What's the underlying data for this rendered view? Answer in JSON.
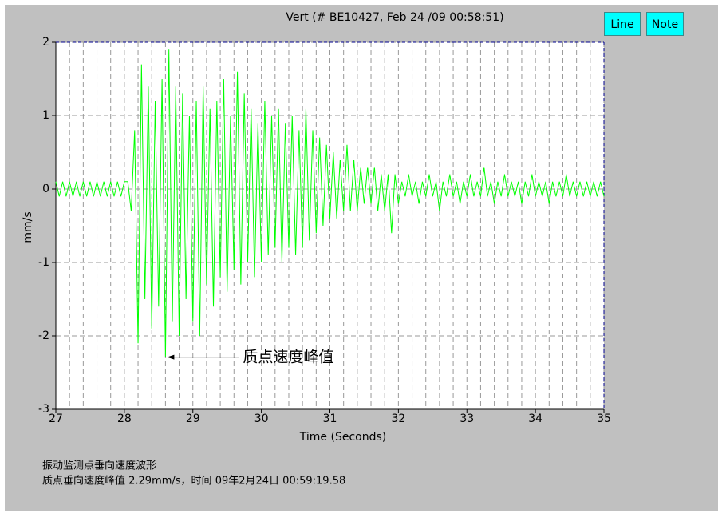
{
  "chart_data": {
    "type": "line",
    "title": "Vert  (# BE10427, Feb 24 /09 00:58:51)",
    "xlabel": "Time (Seconds)",
    "ylabel": "mm/s",
    "annotation": "质点速度峰值",
    "xlim": [
      27,
      35
    ],
    "ylim": [
      -3,
      2
    ],
    "xticks": [
      27,
      28,
      29,
      30,
      31,
      32,
      33,
      34,
      35
    ],
    "yticks": [
      2,
      1,
      0,
      -1,
      -2,
      -3
    ],
    "x_minor_grid": [
      27.2,
      27.4,
      27.6,
      27.8,
      28.2,
      28.4,
      28.6,
      28.8,
      29.2,
      29.4,
      29.6,
      29.8,
      30.2,
      30.4,
      30.6,
      30.8,
      31.2,
      31.4,
      31.6,
      31.8,
      32.2,
      32.4,
      32.6,
      32.8,
      33.2,
      33.4,
      33.6,
      33.8,
      34.2,
      34.4,
      34.6,
      34.8
    ],
    "grid": true,
    "x": [
      27,
      27.05,
      27.1,
      27.15,
      27.2,
      27.25,
      27.3,
      27.35,
      27.4,
      27.45,
      27.5,
      27.55,
      27.6,
      27.65,
      27.7,
      27.75,
      27.8,
      27.85,
      27.9,
      27.95,
      28,
      28.05,
      28.1,
      28.15,
      28.2,
      28.25,
      28.3,
      28.35,
      28.4,
      28.45,
      28.5,
      28.55,
      28.6,
      28.65,
      28.7,
      28.75,
      28.8,
      28.85,
      28.9,
      28.95,
      29,
      29.05,
      29.1,
      29.15,
      29.2,
      29.25,
      29.3,
      29.35,
      29.4,
      29.45,
      29.5,
      29.55,
      29.6,
      29.65,
      29.7,
      29.75,
      29.8,
      29.85,
      29.9,
      29.95,
      30,
      30.05,
      30.1,
      30.15,
      30.2,
      30.25,
      30.3,
      30.35,
      30.4,
      30.45,
      30.5,
      30.55,
      30.6,
      30.65,
      30.7,
      30.75,
      30.8,
      30.85,
      30.9,
      30.95,
      31,
      31.05,
      31.1,
      31.15,
      31.2,
      31.25,
      31.3,
      31.35,
      31.4,
      31.45,
      31.5,
      31.55,
      31.6,
      31.65,
      31.7,
      31.75,
      31.8,
      31.85,
      31.9,
      31.95,
      32,
      32.05,
      32.1,
      32.15,
      32.2,
      32.25,
      32.3,
      32.35,
      32.4,
      32.45,
      32.5,
      32.55,
      32.6,
      32.65,
      32.7,
      32.75,
      32.8,
      32.85,
      32.9,
      32.95,
      33,
      33.05,
      33.1,
      33.15,
      33.2,
      33.25,
      33.3,
      33.35,
      33.4,
      33.45,
      33.5,
      33.55,
      33.6,
      33.65,
      33.7,
      33.75,
      33.8,
      33.85,
      33.9,
      33.95,
      34,
      34.05,
      34.1,
      34.15,
      34.2,
      34.25,
      34.3,
      34.35,
      34.4,
      34.45,
      34.5,
      34.55,
      34.6,
      34.65,
      34.7,
      34.75,
      34.8,
      34.85,
      34.9,
      34.95,
      35
    ],
    "series": [
      {
        "color": "#00ff00",
        "values": [
          0.1,
          -0.1,
          0.1,
          -0.1,
          0.1,
          -0.1,
          0.1,
          -0.1,
          0.1,
          -0.1,
          0.1,
          -0.1,
          0.1,
          -0.1,
          0.1,
          -0.1,
          0.1,
          -0.1,
          0.1,
          -0.1,
          0.1,
          0.1,
          -0.3,
          0.8,
          -2.1,
          1.7,
          -1.5,
          1.4,
          -1.9,
          1.2,
          -1.6,
          1.5,
          -2.29,
          1.9,
          -1.8,
          1.4,
          -2.0,
          1.3,
          -1.5,
          1.0,
          -1.8,
          1.2,
          -2.0,
          1.4,
          -1.3,
          1.1,
          -1.6,
          1.2,
          -1.2,
          1.5,
          -1.4,
          1.0,
          -1.1,
          1.6,
          -1.3,
          1.3,
          -1.0,
          1.1,
          -1.2,
          0.9,
          -1.0,
          1.2,
          -0.9,
          1.0,
          -0.8,
          1.1,
          -1.0,
          0.9,
          -0.8,
          1.0,
          -0.9,
          0.8,
          -0.8,
          1.1,
          -0.7,
          0.8,
          -0.6,
          0.7,
          -0.5,
          0.6,
          -0.4,
          0.5,
          -0.4,
          0.4,
          -0.3,
          0.6,
          -0.3,
          0.4,
          -0.3,
          0.3,
          -0.2,
          0.3,
          -0.2,
          0.3,
          -0.3,
          0.2,
          -0.3,
          0.2,
          -0.6,
          0.2,
          -0.2,
          0.1,
          -0.1,
          0.2,
          -0.1,
          0.1,
          -0.2,
          0.1,
          -0.1,
          0.2,
          -0.1,
          0.1,
          -0.3,
          0.1,
          -0.1,
          0.2,
          -0.1,
          0.1,
          -0.2,
          0.1,
          -0.1,
          0.2,
          -0.1,
          0.1,
          -0.1,
          0.3,
          -0.1,
          0.1,
          -0.2,
          0.1,
          -0.1,
          0.2,
          -0.1,
          0.1,
          -0.1,
          0.1,
          -0.2,
          0.1,
          -0.1,
          0.2,
          -0.1,
          0.1,
          -0.1,
          0.1,
          -0.2,
          0.1,
          -0.1,
          0.1,
          -0.1,
          0.2,
          -0.1,
          0.1,
          -0.1,
          0.1,
          -0.1,
          0.1,
          -0.1,
          0.1,
          -0.1,
          0.1,
          -0.1
        ]
      }
    ]
  },
  "buttons": [
    "Line",
    "Note"
  ],
  "footer": [
    "振动监测点垂向速度波形",
    "质点垂向速度峰值 2.29mm/s，时间 09年2月24日 00:59:19.58"
  ]
}
